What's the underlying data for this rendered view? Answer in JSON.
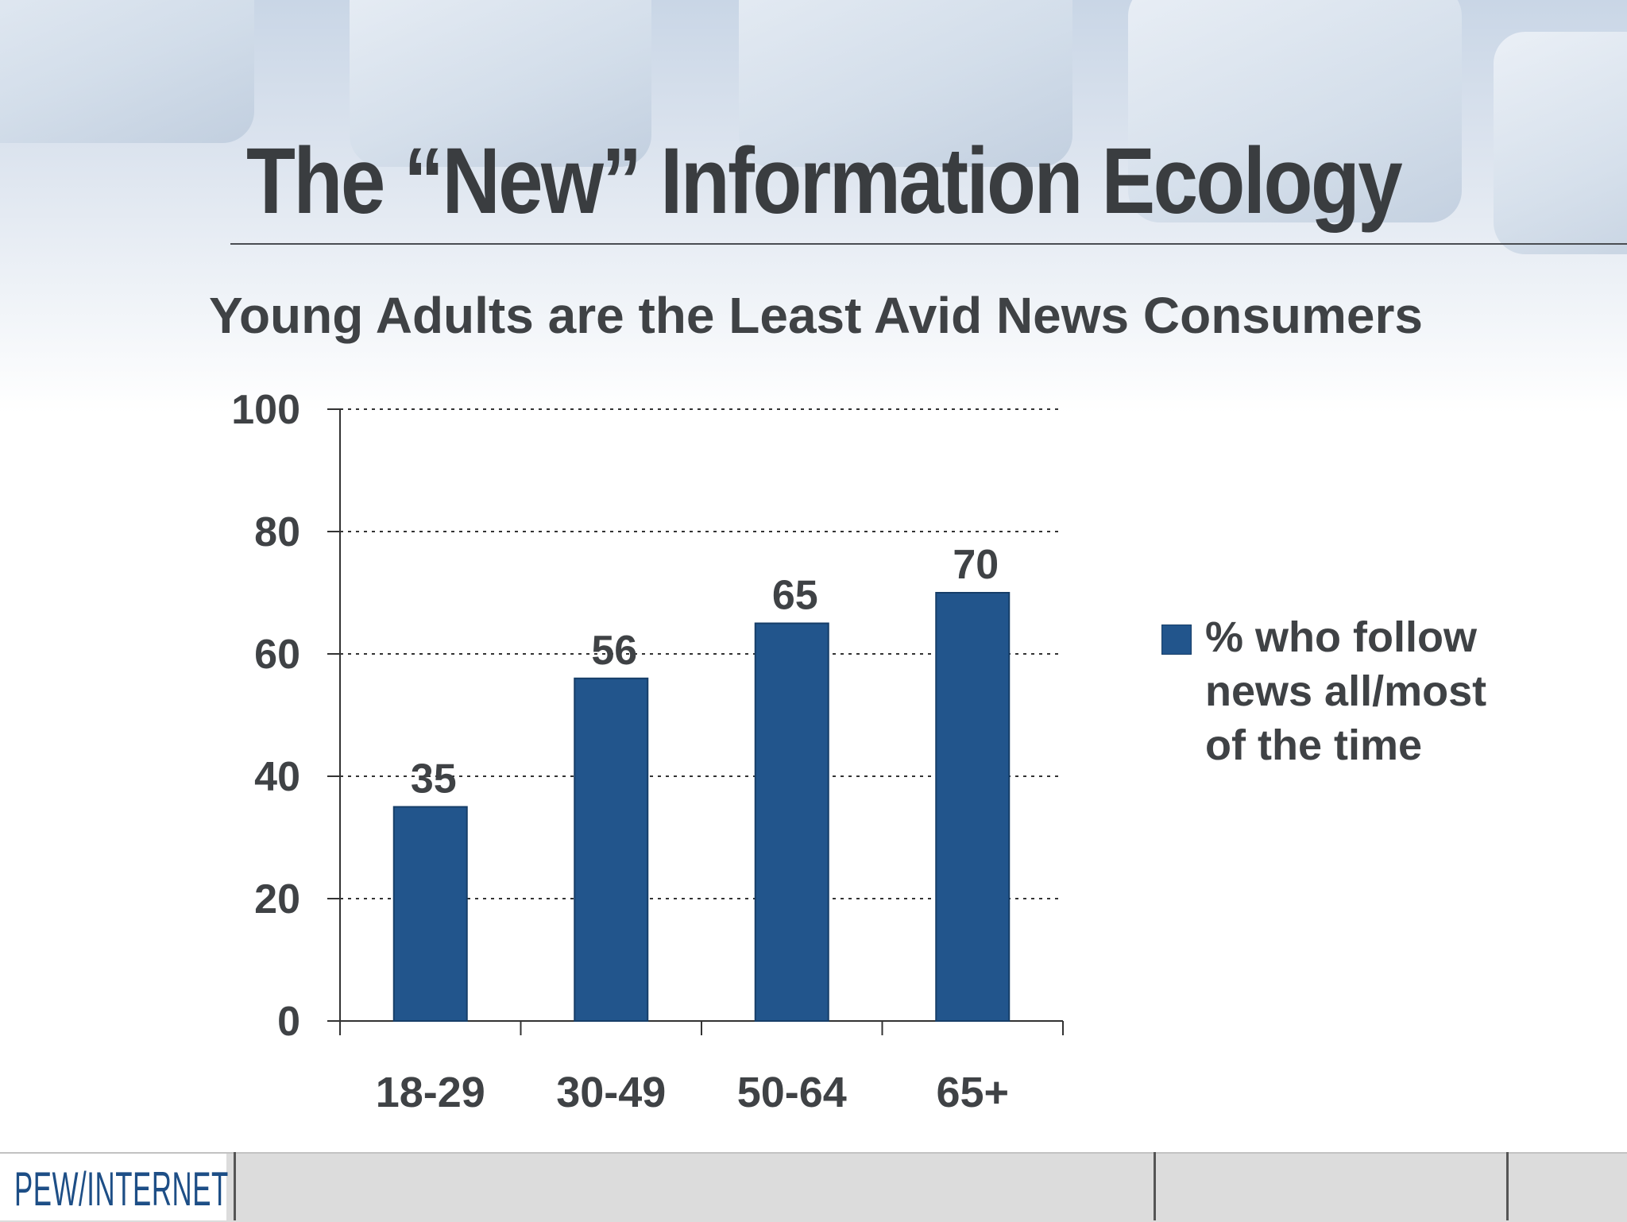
{
  "slide": {
    "title": "The “New” Information Ecology",
    "subtitle": "Young Adults are the Least Avid News Consumers"
  },
  "chart_data": {
    "type": "bar",
    "categories": [
      "18-29",
      "30-49",
      "50-64",
      "65+"
    ],
    "series": [
      {
        "name": "% who follow news all/most of the time",
        "values": [
          35,
          56,
          65,
          70
        ]
      }
    ],
    "ylim": [
      0,
      100
    ],
    "yticks": [
      0,
      20,
      40,
      60,
      80,
      100
    ],
    "grid": true,
    "legend_position": "right",
    "bar_color": "#22558c",
    "data_labels": true
  },
  "footer": {
    "logo_text": "PEW/INTERNET"
  }
}
